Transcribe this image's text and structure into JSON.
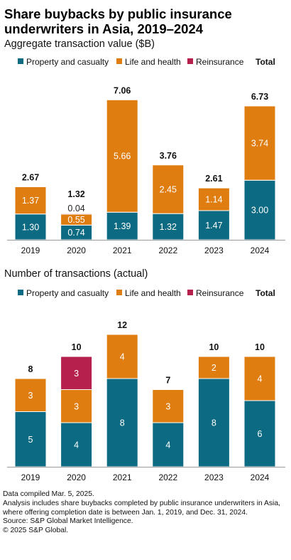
{
  "title": "Share buybacks by public insurance underwriters in Asia, 2019–2024",
  "colors": {
    "property": "#0c6a82",
    "life": "#e07d10",
    "reinsurance": "#b5204d"
  },
  "legend": {
    "property": "Property and casualty",
    "life": "Life and health",
    "reinsurance": "Reinsurance",
    "total": "Total"
  },
  "chart_data": [
    {
      "type": "bar",
      "title": "Aggregate transaction value ($B)",
      "categories": [
        "2019",
        "2020",
        "2021",
        "2022",
        "2023",
        "2024"
      ],
      "series": [
        {
          "name": "Property and casualty",
          "values": [
            1.3,
            0.74,
            1.39,
            1.32,
            1.47,
            3.0
          ],
          "labels": [
            "1.30",
            "0.74",
            "1.39",
            "1.32",
            "1.47",
            "3.00"
          ]
        },
        {
          "name": "Life and health",
          "values": [
            1.37,
            0.55,
            5.66,
            2.45,
            1.14,
            3.74
          ],
          "labels": [
            "1.37",
            "0.55",
            "5.66",
            "2.45",
            "1.14",
            "3.74"
          ]
        },
        {
          "name": "Reinsurance",
          "values": [
            0,
            0.04,
            0,
            0,
            0,
            0
          ],
          "labels": [
            "",
            "0.04",
            "",
            "",
            "",
            ""
          ]
        }
      ],
      "totals": [
        "2.67",
        "1.32",
        "7.06",
        "3.76",
        "2.61",
        "6.73"
      ],
      "ylim": [
        0,
        7.06
      ],
      "stacked": true
    },
    {
      "type": "bar",
      "title": "Number of transactions (actual)",
      "categories": [
        "2019",
        "2020",
        "2021",
        "2022",
        "2023",
        "2024"
      ],
      "series": [
        {
          "name": "Property and casualty",
          "values": [
            5,
            4,
            8,
            4,
            8,
            6
          ],
          "labels": [
            "5",
            "4",
            "8",
            "4",
            "8",
            "6"
          ]
        },
        {
          "name": "Life and health",
          "values": [
            3,
            3,
            4,
            3,
            2,
            4
          ],
          "labels": [
            "3",
            "3",
            "4",
            "3",
            "2",
            "4"
          ]
        },
        {
          "name": "Reinsurance",
          "values": [
            0,
            3,
            0,
            0,
            0,
            0
          ],
          "labels": [
            "",
            "3",
            "",
            "",
            "",
            ""
          ]
        }
      ],
      "totals": [
        "8",
        "10",
        "12",
        "7",
        "10",
        "10"
      ],
      "ylim": [
        0,
        12
      ],
      "stacked": true
    }
  ],
  "footnotes": [
    "Data compiled Mar. 5, 2025.",
    "Analysis includes share buybacks completed by public insurance underwriters in Asia, where offering completion date is between Jan. 1, 2019, and Dec. 31, 2024.",
    "Source: S&P Global Market Intelligence.",
    "© 2025 S&P Global."
  ]
}
